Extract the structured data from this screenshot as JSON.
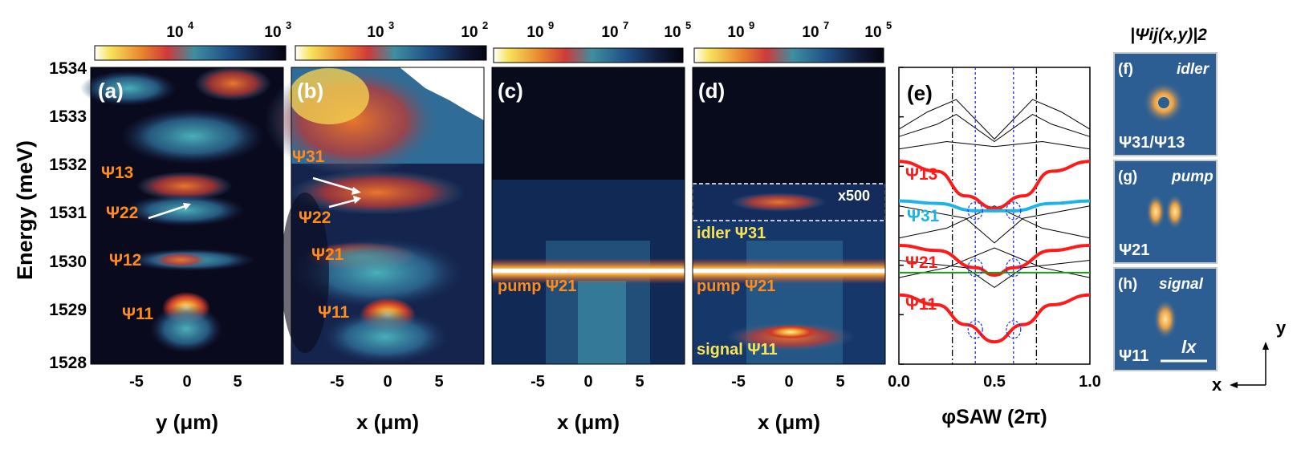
{
  "figure": {
    "y_axis_label": "Energy (meV)",
    "energy_ticks": [
      "1534",
      "1533",
      "1532",
      "1531",
      "1530",
      "1529",
      "1528"
    ],
    "colors": {
      "dark": "#0b0b20",
      "mid_blue": "#2c5f92",
      "cyan": "#4aa3b8",
      "yellow": "#f7e35a",
      "orange": "#e9822d",
      "red": "#cf2e2a",
      "curve_red": "#ff1a1a",
      "curve_cyan": "#1cb4e8",
      "pump_green": "#1a9a1a",
      "label_orange": "#ff8c1a"
    }
  },
  "panels": [
    {
      "id": "a",
      "label": "(a)",
      "colorbar_ticks": [
        "10",
        "10"
      ],
      "colorbar_exps": [
        "4",
        "3"
      ],
      "x_ticks": [
        "-5",
        "0",
        "5"
      ],
      "x_label": "y (μm)",
      "annotations": [
        {
          "text": "Ψ13"
        },
        {
          "text": "Ψ22"
        },
        {
          "text": "Ψ12"
        },
        {
          "text": "Ψ11"
        }
      ]
    },
    {
      "id": "b",
      "label": "(b)",
      "colorbar_ticks": [
        "10",
        "10"
      ],
      "colorbar_exps": [
        "3",
        "2"
      ],
      "x_ticks": [
        "-5",
        "0",
        "5"
      ],
      "x_label": "x (μm)",
      "annotations": [
        {
          "text": "Ψ31"
        },
        {
          "text": "Ψ22"
        },
        {
          "text": "Ψ21"
        },
        {
          "text": "Ψ11"
        }
      ]
    },
    {
      "id": "c",
      "label": "(c)",
      "colorbar_ticks": [
        "10",
        "10",
        "10"
      ],
      "colorbar_exps": [
        "9",
        "7",
        "5"
      ],
      "x_ticks": [
        "-5",
        "0",
        "5"
      ],
      "x_label": "x (μm)",
      "annotations": [
        {
          "text": "pump Ψ21"
        }
      ]
    },
    {
      "id": "d",
      "label": "(d)",
      "colorbar_ticks": [
        "10",
        "10",
        "10"
      ],
      "colorbar_exps": [
        "9",
        "7",
        "5"
      ],
      "x_ticks": [
        "-5",
        "0",
        "5"
      ],
      "x_label": "x (μm)",
      "inset_label": "x500",
      "annotations": [
        {
          "text": "idler Ψ31"
        },
        {
          "text": "pump Ψ21"
        },
        {
          "text": "signal Ψ11"
        }
      ]
    },
    {
      "id": "e",
      "label": "(e)",
      "x_ticks": [
        "0.0",
        "0.5",
        "1.0"
      ],
      "x_label": "φSAW (2π)",
      "curve_labels": [
        "Ψ13",
        "Ψ31",
        "Ψ21",
        "Ψ11"
      ]
    }
  ],
  "wavefunctions": {
    "title": "|Ψij(x,y)|2",
    "panels": [
      {
        "label": "(f)",
        "mode": "idler",
        "state": "Ψ31/Ψ13"
      },
      {
        "label": "(g)",
        "mode": "pump",
        "state": "Ψ21"
      },
      {
        "label": "(h)",
        "mode": "signal",
        "state": "Ψ11"
      }
    ],
    "length_label": "lx",
    "axis_x": "x",
    "axis_y": "y"
  },
  "chart_data": {
    "type": "line",
    "title": "",
    "xlabel": "φSAW (2π)",
    "ylabel": "Energy (meV)",
    "xlim": [
      0.0,
      1.0
    ],
    "ylim": [
      1528,
      1534
    ],
    "series": [
      {
        "name": "Ψ13",
        "x": [
          0.0,
          0.2,
          0.35,
          0.5,
          0.65,
          0.8,
          1.0
        ],
        "y": [
          1532.1,
          1531.9,
          1531.4,
          1531.15,
          1531.4,
          1531.9,
          1532.1
        ]
      },
      {
        "name": "Ψ31",
        "x": [
          0.0,
          0.2,
          0.4,
          0.5,
          0.6,
          0.8,
          1.0
        ],
        "y": [
          1531.3,
          1531.25,
          1531.1,
          1531.1,
          1531.1,
          1531.25,
          1531.3
        ]
      },
      {
        "name": "Ψ21",
        "x": [
          0.0,
          0.2,
          0.4,
          0.5,
          0.6,
          0.8,
          1.0
        ],
        "y": [
          1530.4,
          1530.3,
          1529.95,
          1529.8,
          1529.95,
          1530.3,
          1530.4
        ]
      },
      {
        "name": "Ψ11",
        "x": [
          0.0,
          0.2,
          0.35,
          0.5,
          0.65,
          0.8,
          1.0
        ],
        "y": [
          1529.4,
          1529.2,
          1528.8,
          1528.45,
          1528.8,
          1529.2,
          1529.4
        ]
      },
      {
        "name": "pump",
        "x": [
          0.0,
          1.0
        ],
        "y": [
          1529.85,
          1529.85
        ]
      }
    ]
  }
}
